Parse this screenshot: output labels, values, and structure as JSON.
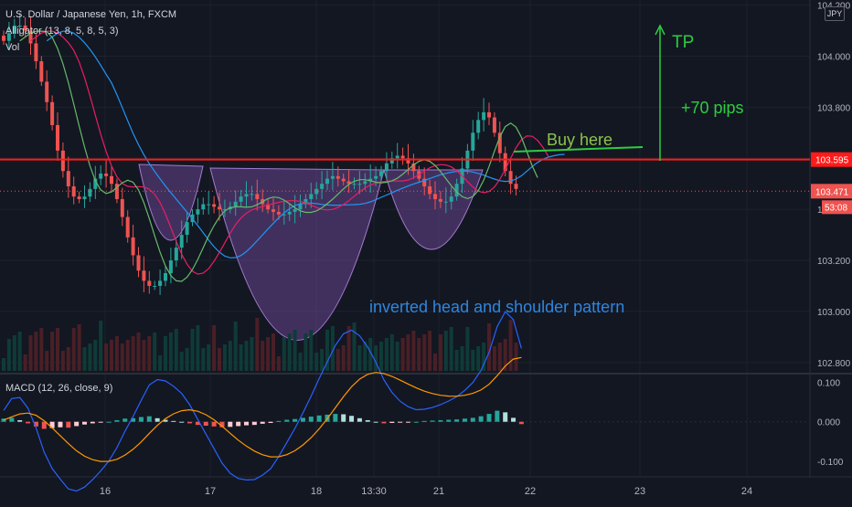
{
  "header": {
    "title": "U.S. Dollar / Japanese Yen, 1h, FXCM",
    "indicator1": "Alligator (13, 8, 5, 8, 5, 3)",
    "indicator2": "Vol",
    "currency_button": "JPY"
  },
  "macd_panel": {
    "label": "MACD (12, 26, close, 9)"
  },
  "price_tags": {
    "resistance": "103.595",
    "last": "103.471",
    "countdown": "53:08"
  },
  "annotations": {
    "tp": "TP",
    "pips": "+70 pips",
    "buy": "Buy here",
    "pattern": "inverted head and shoulder pattern"
  },
  "chart_data": [
    {
      "type": "line",
      "title": "U.S. Dollar / Japanese Yen, 1h, FXCM",
      "y_ticks": [
        "104.200",
        "104.000",
        "103.800",
        "103.600",
        "103.400",
        "103.200",
        "103.000",
        "102.800"
      ],
      "ylim": [
        102.76,
        104.22
      ],
      "x_ticks": [
        "16",
        "17",
        "18",
        "13:30",
        "21",
        "22",
        "23",
        "24"
      ],
      "resistance_level": 103.595,
      "last_price": 103.471,
      "colors": {
        "up": "#26a69a",
        "down": "#ef5350",
        "alligator_jaw": "#2196f3",
        "alligator_teeth": "#e91e63",
        "alligator_lips": "#66bb6a",
        "resistance": "#ff1a1a",
        "annotation_green": "#2ecc40",
        "annotation_blue": "#2e86de",
        "pattern_fill": "#7b4fa8"
      },
      "series": [
        {
          "name": "Alligator (13, 8, 5, 8, 5, 3)",
          "values": [
            104.06,
            104.09,
            104.12,
            104.12,
            104.1,
            104.05,
            103.98,
            103.9,
            103.82,
            103.73,
            103.63,
            103.55,
            103.49,
            103.45,
            103.44,
            103.45,
            103.48,
            103.52,
            103.54,
            103.53,
            103.5,
            103.44,
            103.37,
            103.29,
            103.22,
            103.16,
            103.12,
            103.1,
            103.1,
            103.12,
            103.15,
            103.2,
            103.25,
            103.3,
            103.35,
            103.38,
            103.4,
            103.42,
            103.42,
            103.41,
            103.4,
            103.4,
            103.41,
            103.43,
            103.45,
            103.46,
            103.46,
            103.44,
            103.42,
            103.4,
            103.39,
            103.38,
            103.38,
            103.39,
            103.4,
            103.42,
            103.44,
            103.46,
            103.48,
            103.5,
            103.52,
            103.53,
            103.52,
            103.51,
            103.5,
            103.5,
            103.5,
            103.51,
            103.52,
            103.53,
            103.55,
            103.58,
            103.6,
            103.61,
            103.6,
            103.58,
            103.55,
            103.52,
            103.49,
            103.46,
            103.44,
            103.43,
            103.43,
            103.45,
            103.5,
            103.56,
            103.63,
            103.7,
            103.75,
            103.78,
            103.76,
            103.7,
            103.62,
            103.55,
            103.5,
            103.48,
            103.47
          ]
        }
      ]
    },
    {
      "type": "bar",
      "title": "MACD (12, 26, close, 9)",
      "y_ticks": [
        "0.100",
        "0.000",
        "-0.100"
      ],
      "ylim": [
        -0.14,
        0.12
      ],
      "series": [
        {
          "name": "Histogram",
          "values": [
            0.008,
            0.01,
            0.004,
            -0.004,
            -0.012,
            -0.018,
            -0.016,
            -0.014,
            -0.015,
            -0.011,
            -0.007,
            -0.004,
            -0.002,
            0.0,
            0.004,
            0.008,
            0.009,
            0.012,
            0.014,
            0.009,
            0.005,
            0.002,
            0.0,
            -0.004,
            -0.008,
            -0.01,
            -0.012,
            -0.014,
            -0.013,
            -0.011,
            -0.009,
            -0.008,
            -0.005,
            -0.003,
            0.002,
            0.005,
            0.007,
            0.01,
            0.013,
            0.016,
            0.018,
            0.02,
            0.019,
            0.015,
            0.009,
            0.004,
            0.0,
            -0.004,
            -0.003,
            -0.002,
            -0.001,
            0.0,
            0.002,
            0.003,
            0.004,
            0.005,
            0.006,
            0.008,
            0.01,
            0.014,
            0.02,
            0.028,
            0.024,
            0.01,
            -0.006
          ]
        }
      ]
    }
  ]
}
